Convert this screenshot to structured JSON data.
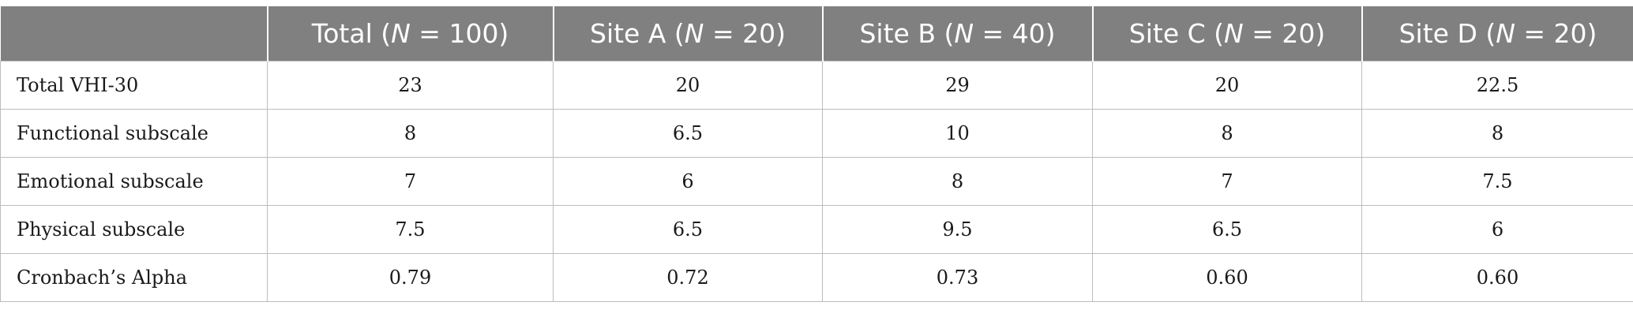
{
  "table": {
    "header": {
      "corner": "",
      "columns": [
        {
          "label_pre": "Total (",
          "n_symbol": "N",
          "label_post": " = 100)"
        },
        {
          "label_pre": "Site A (",
          "n_symbol": "N",
          "label_post": " = 20)"
        },
        {
          "label_pre": "Site B (",
          "n_symbol": "N",
          "label_post": " = 40)"
        },
        {
          "label_pre": "Site C (",
          "n_symbol": "N",
          "label_post": " = 20)"
        },
        {
          "label_pre": "Site D (",
          "n_symbol": "N",
          "label_post": " = 20)"
        }
      ]
    },
    "rows": [
      {
        "label": "Total VHI-30",
        "values": [
          "23",
          "20",
          "29",
          "20",
          "22.5"
        ]
      },
      {
        "label": "Functional subscale",
        "values": [
          "8",
          "6.5",
          "10",
          "8",
          "8"
        ]
      },
      {
        "label": "Emotional subscale",
        "values": [
          "7",
          "6",
          "8",
          "7",
          "7.5"
        ]
      },
      {
        "label": "Physical subscale",
        "values": [
          "7.5",
          "6.5",
          "9.5",
          "6.5",
          "6"
        ]
      },
      {
        "label": "Cronbach’s Alpha",
        "values": [
          "0.79",
          "0.72",
          "0.73",
          "0.60",
          "0.60"
        ]
      }
    ]
  },
  "colors": {
    "header_bg": "#808080",
    "header_text": "#ffffff",
    "grid_line": "#bdbdbd",
    "body_text": "#1a1a1a"
  }
}
